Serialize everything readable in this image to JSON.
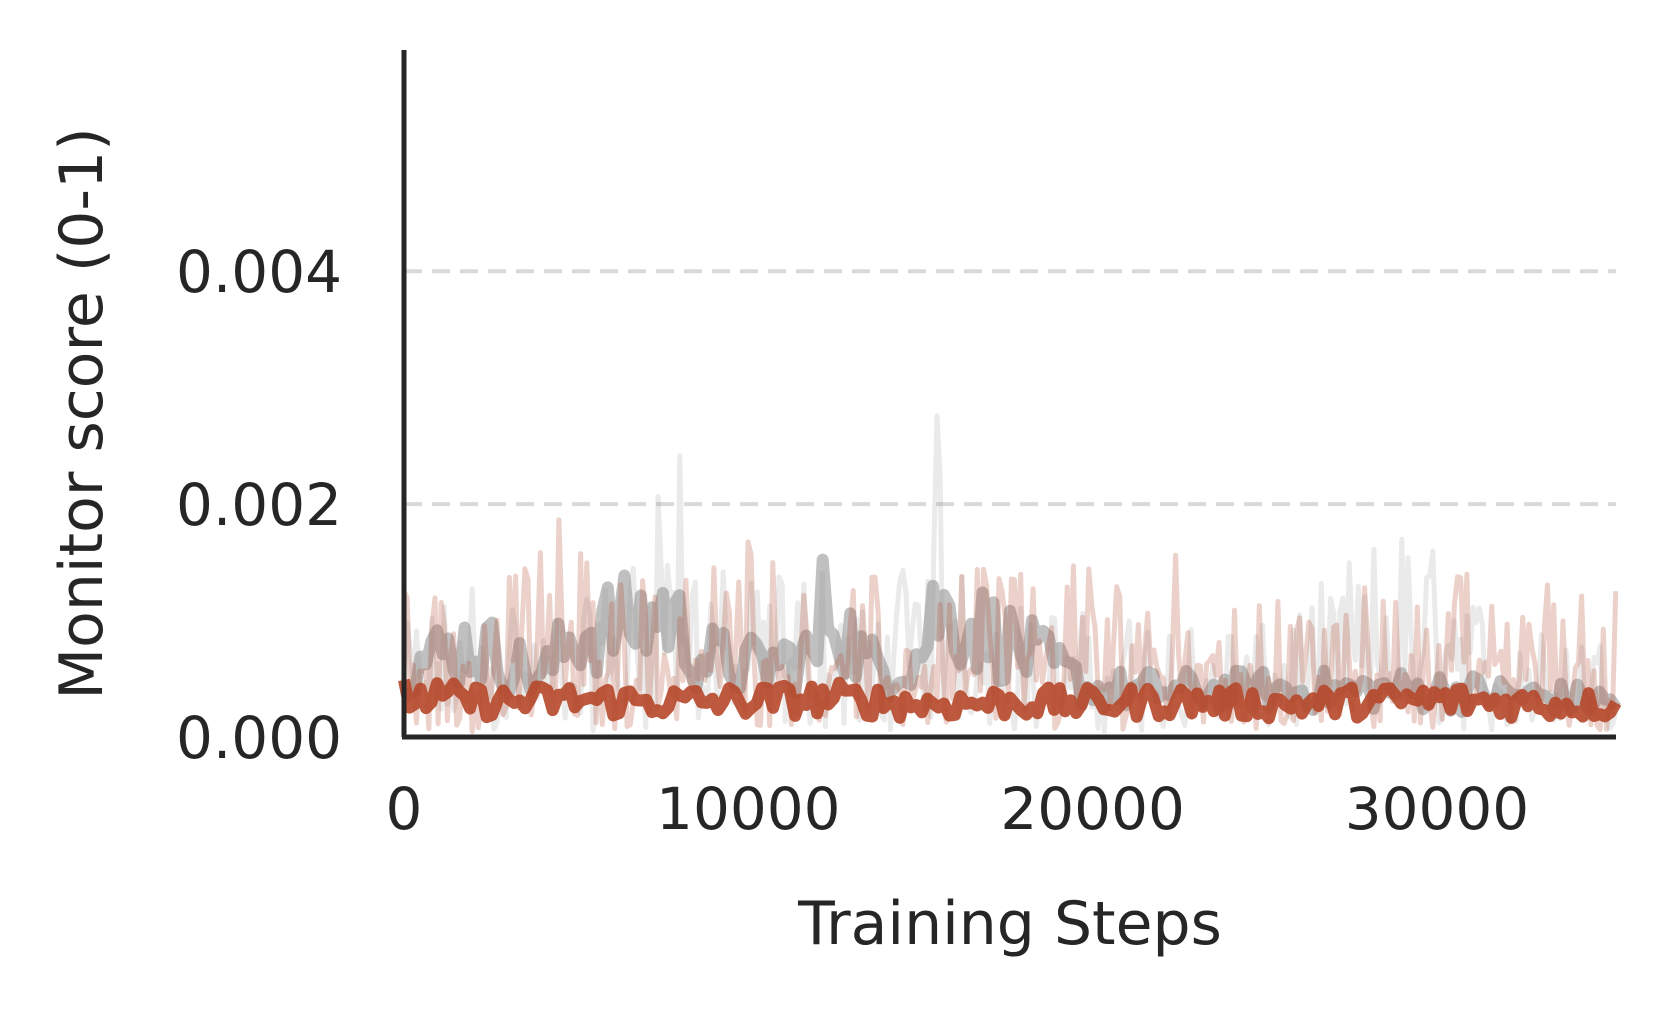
{
  "chart_data": {
    "type": "line",
    "title": "",
    "xlabel": "Training Steps",
    "ylabel": "Monitor score (0-1)",
    "xlim": [
      0,
      35200
    ],
    "ylim": [
      0,
      0.0059
    ],
    "x_ticks": [
      0,
      10000,
      20000,
      30000
    ],
    "x_tick_labels": [
      "0",
      "10000",
      "20000",
      "30000"
    ],
    "y_ticks": [
      0.0,
      0.002,
      0.004
    ],
    "y_tick_labels": [
      "0.000",
      "0.002",
      "0.004"
    ],
    "grid": "horizontal dashed",
    "colors": {
      "orange": "#b5472a",
      "gray": "#8c8c8c",
      "grid": "#d9d9d9",
      "axis": "#262626"
    },
    "series": [
      {
        "color": "#8c8c8c",
        "style": "raw, faint",
        "x": [
          0,
          2000,
          4000,
          5500,
          7000,
          7600,
          8500,
          10000,
          12000,
          13500,
          15000,
          15400,
          17000,
          20000,
          25000,
          29000,
          32000,
          35200
        ],
        "values": [
          0.0008,
          0.0012,
          0.0009,
          0.001,
          0.0015,
          0.0026,
          0.0014,
          0.0011,
          0.0013,
          0.0009,
          0.0016,
          0.0024,
          0.001,
          0.0009,
          0.0008,
          0.0016,
          0.0008,
          0.0007
        ]
      },
      {
        "color": "#8c8c8c",
        "style": "smoothed",
        "x": [
          0,
          2000,
          4000,
          5000,
          7000,
          7600,
          8500,
          10000,
          12000,
          12200,
          13500,
          15000,
          15400,
          17000,
          20000,
          25000,
          30000,
          35200
        ],
        "values": [
          0.0006,
          0.0008,
          0.0005,
          0.0009,
          0.001,
          0.0011,
          0.0007,
          0.0006,
          0.0007,
          0.0012,
          0.0006,
          0.0007,
          0.0011,
          0.0009,
          0.0004,
          0.0004,
          0.0004,
          0.0003
        ]
      },
      {
        "color": "#b5472a",
        "style": "raw, faint",
        "x": [
          0,
          2000,
          4500,
          6000,
          8000,
          10000,
          13000,
          15000,
          17000,
          20000,
          22000,
          25000,
          28000,
          30000,
          33000,
          35200
        ],
        "values": [
          0.0012,
          0.0009,
          0.0016,
          0.0011,
          0.0013,
          0.0015,
          0.0012,
          0.0011,
          0.0014,
          0.0012,
          0.0014,
          0.001,
          0.0011,
          0.0012,
          0.0012,
          0.0011
        ]
      },
      {
        "color": "#b5472a",
        "style": "smoothed",
        "x": [
          0,
          2500,
          5000,
          7500,
          10000,
          12500,
          15000,
          17500,
          20000,
          22500,
          25000,
          27500,
          30000,
          32500,
          35200
        ],
        "values": [
          0.00035,
          0.0003,
          0.00032,
          0.0003,
          0.00031,
          0.00033,
          0.00028,
          0.0003,
          0.00029,
          0.00031,
          0.00028,
          0.0003,
          0.00032,
          0.00029,
          0.00027
        ]
      }
    ]
  }
}
